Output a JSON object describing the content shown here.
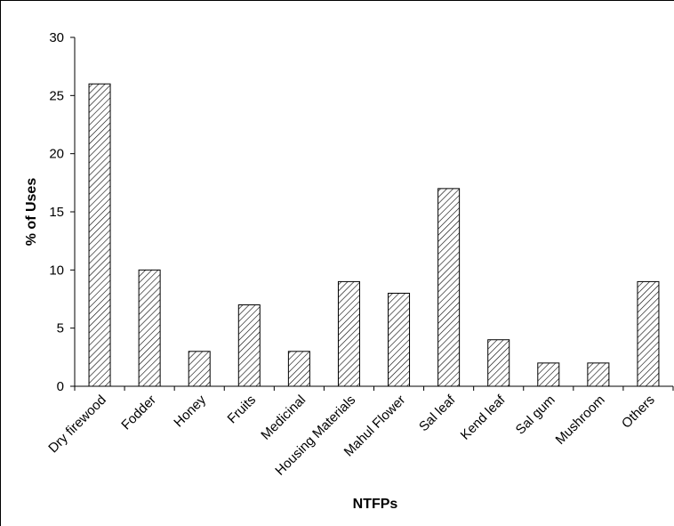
{
  "chart_data": {
    "type": "bar",
    "xlabel": "NTFPs",
    "ylabel": "% of Uses",
    "ylim": [
      0,
      30
    ],
    "yticks": [
      0,
      5,
      10,
      15,
      20,
      25,
      30
    ],
    "grid": false,
    "legend": "none",
    "bar_fill": "diagonal hatch",
    "colors": {
      "bar_stroke": "#000000",
      "hatch": "#000000",
      "background": "#ffffff"
    },
    "categories": [
      "Dry firewood",
      "Fodder",
      "Honey",
      "Fruits",
      "Medicinal",
      "Housing Materials",
      "Mahul Flower",
      "Sal leaf",
      "Kend leaf",
      "Sal gum",
      "Mushroom",
      "Others"
    ],
    "values": [
      26,
      10,
      3,
      7,
      3,
      9,
      8,
      17,
      4,
      2,
      2,
      9
    ]
  }
}
